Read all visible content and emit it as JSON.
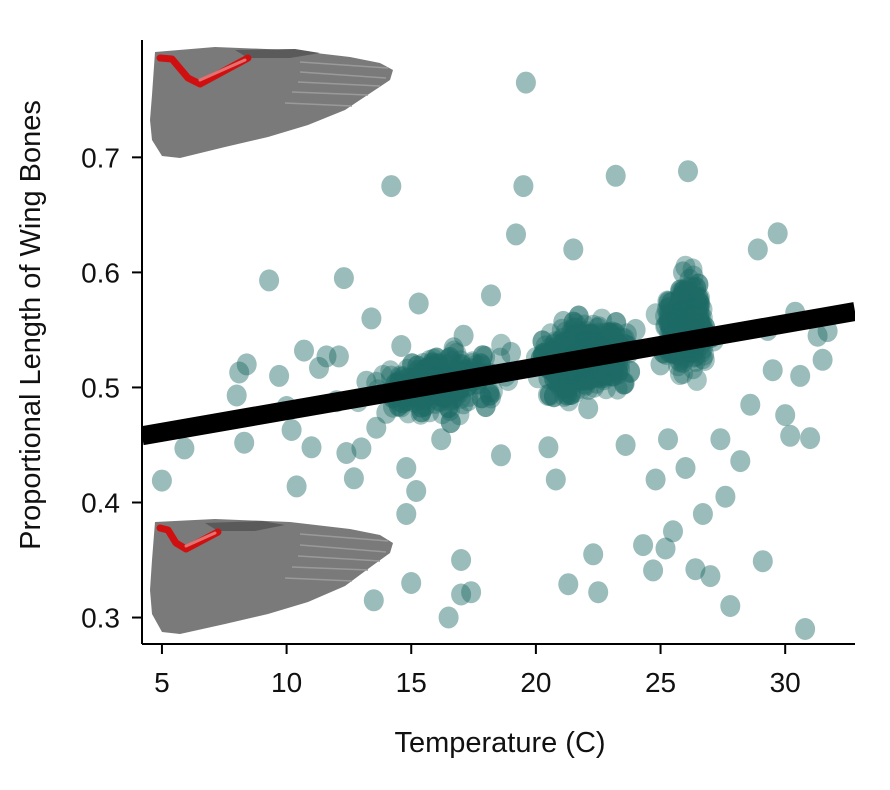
{
  "chart_data": {
    "type": "scatter",
    "title": "",
    "xlabel": "Temperature (C)",
    "ylabel": "Proportional Length of Wing Bones",
    "xlim": [
      4.2,
      32.8
    ],
    "ylim": [
      0.277,
      0.802
    ],
    "xticks": [
      5,
      10,
      15,
      20,
      25,
      30
    ],
    "yticks": [
      0.3,
      0.4,
      0.5,
      0.6,
      0.7
    ],
    "xtick_labels": [
      "5",
      "10",
      "15",
      "20",
      "25",
      "30"
    ],
    "ytick_labels": [
      "0.3",
      "0.4",
      "0.5",
      "0.6",
      "0.7"
    ],
    "grid": false,
    "legend": "none",
    "colors": {
      "points": "#1f6b66",
      "fit_line": "#000000",
      "wing": "#7a7a7a",
      "wing_dark": "#5a5a5a",
      "bones": "#d01010"
    },
    "insets": [
      {
        "name": "wing-long-bones",
        "position": "top-left"
      },
      {
        "name": "wing-short-bones",
        "position": "bottom-left"
      }
    ],
    "series": [
      {
        "type": "line",
        "x": [
          4.2,
          32.8
        ],
        "y": [
          0.458,
          0.566
        ]
      },
      {
        "type": "scatter",
        "x": [
          5.0,
          5.9,
          8.0,
          8.1,
          8.4,
          8.3,
          9.3,
          9.7,
          10.0,
          10.2,
          10.4,
          10.7,
          11.0,
          11.3,
          11.6,
          12.0,
          12.1,
          12.3,
          12.4,
          12.7,
          13.0,
          13.2,
          13.4,
          13.5,
          13.6,
          14.0,
          14.2,
          14.6,
          14.8,
          14.8,
          15.0,
          15.2,
          15.3,
          16.0,
          16.2,
          16.5,
          16.7,
          17.0,
          17.0,
          17.1,
          17.4,
          17.6,
          18.2,
          18.6,
          19.0,
          19.2,
          19.5,
          19.6,
          20.5,
          20.5,
          20.8,
          21.1,
          21.3,
          21.5,
          22.1,
          22.3,
          22.5,
          22.9,
          23.2,
          23.3,
          23.6,
          24.0,
          24.3,
          24.7,
          24.8,
          25.0,
          25.2,
          25.3,
          25.5,
          25.6,
          25.9,
          26.0,
          26.1,
          26.3,
          26.4,
          26.7,
          27.0,
          27.4,
          27.6,
          27.8,
          28.2,
          28.6,
          28.9,
          29.1,
          29.3,
          29.5,
          29.7,
          30.0,
          30.2,
          30.4,
          30.6,
          30.8,
          31.0,
          31.3,
          31.5,
          31.7
        ],
        "y": [
          0.419,
          0.447,
          0.493,
          0.513,
          0.52,
          0.452,
          0.593,
          0.51,
          0.483,
          0.463,
          0.414,
          0.532,
          0.448,
          0.517,
          0.527,
          0.488,
          0.527,
          0.595,
          0.443,
          0.421,
          0.447,
          0.505,
          0.56,
          0.315,
          0.465,
          0.478,
          0.675,
          0.536,
          0.43,
          0.39,
          0.33,
          0.41,
          0.573,
          0.496,
          0.455,
          0.3,
          0.534,
          0.35,
          0.32,
          0.545,
          0.322,
          0.513,
          0.58,
          0.441,
          0.53,
          0.633,
          0.675,
          0.765,
          0.508,
          0.448,
          0.42,
          0.557,
          0.329,
          0.62,
          0.482,
          0.355,
          0.322,
          0.53,
          0.684,
          0.512,
          0.45,
          0.55,
          0.363,
          0.341,
          0.42,
          0.52,
          0.36,
          0.455,
          0.375,
          0.53,
          0.6,
          0.43,
          0.688,
          0.56,
          0.342,
          0.39,
          0.336,
          0.455,
          0.405,
          0.31,
          0.436,
          0.485,
          0.62,
          0.349,
          0.55,
          0.515,
          0.634,
          0.476,
          0.458,
          0.565,
          0.51,
          0.29,
          0.456,
          0.545,
          0.524,
          0.549
        ]
      }
    ]
  }
}
